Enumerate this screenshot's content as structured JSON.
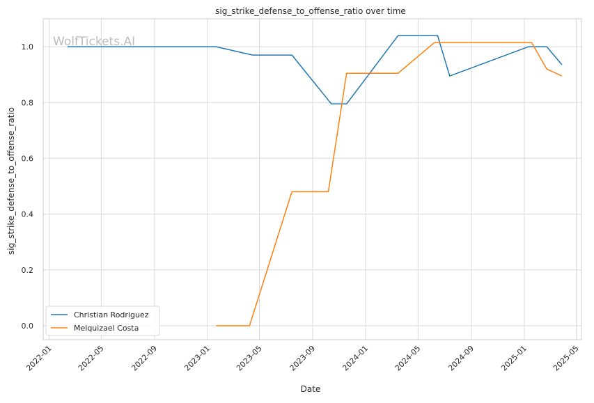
{
  "chart_data": {
    "type": "line",
    "title": "sig_strike_defense_to_offense_ratio over time",
    "xlabel": "Date",
    "ylabel": "sig_strike_defense_to_offense_ratio",
    "watermark": "WolfTickets.AI",
    "xlim": [
      "2021-12-18",
      "2025-05-13"
    ],
    "ylim": [
      -0.05,
      1.1
    ],
    "x_ticks": [
      "2022-01-01",
      "2022-05-01",
      "2022-09-01",
      "2023-01-01",
      "2023-05-01",
      "2023-09-01",
      "2024-01-01",
      "2024-05-01",
      "2024-09-01",
      "2025-01-01",
      "2025-05-01"
    ],
    "x_tick_labels": [
      "2022-01",
      "2022-05",
      "2022-09",
      "2023-01",
      "2023-05",
      "2023-09",
      "2024-01",
      "2024-05",
      "2024-09",
      "2025-01",
      "2025-05"
    ],
    "y_ticks": [
      0.0,
      0.2,
      0.4,
      0.6,
      0.8,
      1.0
    ],
    "y_tick_labels": [
      "0.0",
      "0.2",
      "0.4",
      "0.6",
      "0.8",
      "1.0"
    ],
    "grid": true,
    "legend_position": "lower-left",
    "series": [
      {
        "name": "Christian Rodriguez",
        "color": "#1f77b4",
        "x": [
          "2022-02-12",
          "2023-01-21",
          "2023-04-15",
          "2023-07-15",
          "2023-10-14",
          "2023-11-18",
          "2024-03-16",
          "2024-06-15",
          "2024-07-13",
          "2025-01-11",
          "2025-02-22",
          "2025-03-29"
        ],
        "y": [
          1.0,
          1.0,
          0.97,
          0.97,
          0.795,
          0.795,
          1.04,
          1.04,
          0.895,
          1.0,
          1.0,
          0.935
        ]
      },
      {
        "name": "Melquizael Costa",
        "color": "#ff7f0e",
        "x": [
          "2023-01-21",
          "2023-04-08",
          "2023-07-15",
          "2023-10-07",
          "2023-11-18",
          "2024-03-16",
          "2024-06-08",
          "2025-01-18",
          "2025-02-22",
          "2025-03-29"
        ],
        "y": [
          0.0,
          0.0,
          0.48,
          0.48,
          0.905,
          0.905,
          1.015,
          1.015,
          0.92,
          0.895
        ]
      }
    ]
  }
}
